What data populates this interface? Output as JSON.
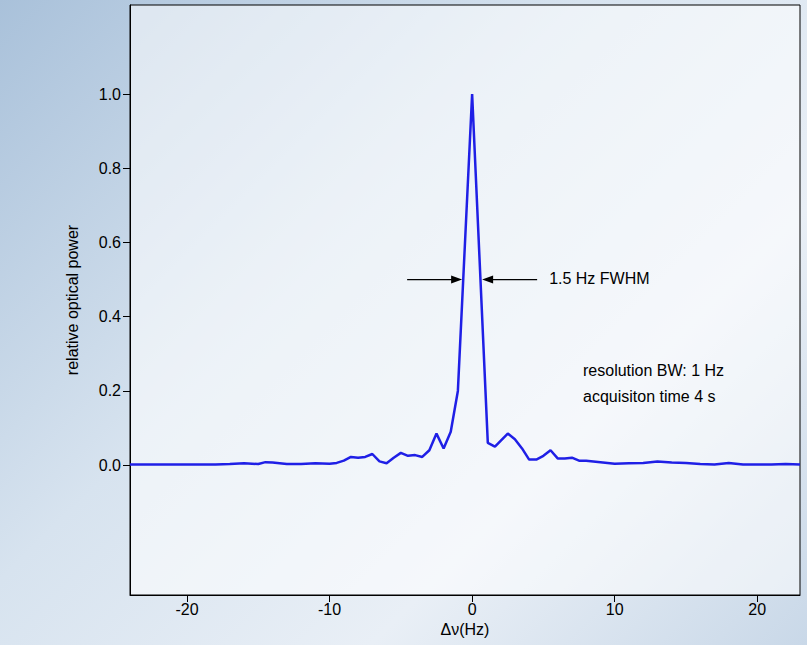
{
  "chart_data": {
    "type": "line",
    "x_label": "Δν(Hz)",
    "y_label": "relative optical power",
    "annotations": [
      "1.5 Hz FWHM",
      "resolution BW: 1 Hz",
      "acquisiton time 4 s"
    ],
    "x": [
      -24,
      -22,
      -20,
      -18,
      -17,
      -16,
      -15,
      -14.5,
      -14,
      -13,
      -12,
      -11,
      -10,
      -9.5,
      -9,
      -8.5,
      -8,
      -7.5,
      -7,
      -6.5,
      -6,
      -5.5,
      -5,
      -4.5,
      -4,
      -3.5,
      -3,
      -2.5,
      -2,
      -1.5,
      -1,
      0,
      1.1,
      1.6,
      2.5,
      3,
      3.5,
      4,
      4.5,
      5,
      5.5,
      6,
      6.5,
      7,
      7.5,
      8,
      9,
      10,
      11,
      12,
      13,
      14,
      15,
      16,
      17,
      18,
      19,
      20,
      21,
      22,
      23
    ],
    "values": [
      0.002,
      0.002,
      0.002,
      0.002,
      0.003,
      0.005,
      0.003,
      0.008,
      0.007,
      0.003,
      0.003,
      0.005,
      0.004,
      0.006,
      0.012,
      0.022,
      0.02,
      0.022,
      0.03,
      0.01,
      0.005,
      0.02,
      0.033,
      0.025,
      0.027,
      0.022,
      0.04,
      0.085,
      0.045,
      0.09,
      0.2,
      1.0,
      0.06,
      0.05,
      0.085,
      0.07,
      0.045,
      0.015,
      0.015,
      0.025,
      0.04,
      0.018,
      0.018,
      0.02,
      0.012,
      0.012,
      0.008,
      0.004,
      0.005,
      0.006,
      0.01,
      0.007,
      0.006,
      0.003,
      0.002,
      0.006,
      0.002,
      0.002,
      0.002,
      0.003,
      0.002
    ],
    "color": "#1f1fe6",
    "line_style": "solid",
    "marker": "none",
    "xlim": [
      -24,
      23
    ],
    "xticks": [
      -20,
      -10,
      0,
      10,
      20
    ],
    "ylim": [
      -0.35,
      1.24
    ],
    "yticks": [
      {
        "value": 0,
        "label": "0.0"
      },
      0.2,
      0.4,
      0.6,
      0.8,
      {
        "value": 1,
        "label": "1.0"
      }
    ],
    "grid": false
  }
}
